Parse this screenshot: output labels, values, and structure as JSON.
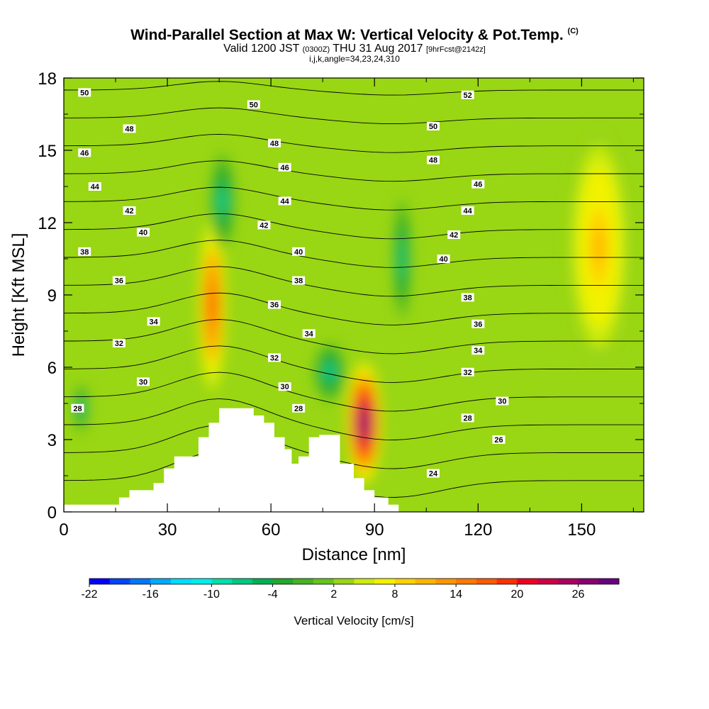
{
  "header": {
    "title": "Wind-Parallel Section at Max W: Vertical Velocity & Pot.Temp.",
    "copyright_mark": "(C)",
    "valid_prefix": "Valid 1200 JST",
    "valid_zulu": "(0300Z)",
    "valid_date": "THU 31 Aug 2017",
    "forecast_info": "[9hrFcst@2142z]",
    "indices": "i,j,k,angle=34,23,24,310"
  },
  "colorbar": {
    "title": "Vertical Velocity [cm/s]",
    "tick_labels": [
      "-22",
      "-16",
      "-10",
      "-4",
      "2",
      "8",
      "14",
      "20",
      "26"
    ],
    "colors": [
      "#0000ff",
      "#0044ff",
      "#0077ff",
      "#00aaff",
      "#00ddff",
      "#00eeee",
      "#00e0aa",
      "#00c880",
      "#00b050",
      "#22a82a",
      "#44b422",
      "#66c41c",
      "#99d614",
      "#ccec0c",
      "#f2f200",
      "#ffd200",
      "#ffb400",
      "#ff9600",
      "#ff7800",
      "#ff5a00",
      "#ff3000",
      "#ee0022",
      "#cc0044",
      "#aa0060",
      "#880070",
      "#6a0080"
    ]
  },
  "chart_data": {
    "type": "heatmap",
    "title": "Wind-Parallel Section at Max W: Vertical Velocity & Pot.Temp.",
    "xlabel": "Distance [nm]",
    "ylabel": "Height [Kft MSL]",
    "xlim": [
      0,
      168
    ],
    "ylim": [
      0,
      18
    ],
    "xticks": [
      0,
      30,
      60,
      90,
      120,
      150
    ],
    "yticks": [
      0,
      3,
      6,
      9,
      12,
      15,
      18
    ],
    "fill_variable": "Vertical Velocity [cm/s]",
    "fill_range": [
      -22,
      30
    ],
    "contour_variable": "Potential temperature",
    "contour_levels": [
      24,
      26,
      28,
      30,
      32,
      34,
      36,
      38,
      40,
      42,
      44,
      46,
      48,
      50,
      52
    ],
    "contour_labels": [
      {
        "text": "50",
        "x": 6,
        "y": 17.4
      },
      {
        "text": "50",
        "x": 55,
        "y": 16.9
      },
      {
        "text": "52",
        "x": 117,
        "y": 17.3
      },
      {
        "text": "48",
        "x": 19,
        "y": 15.9
      },
      {
        "text": "48",
        "x": 61,
        "y": 15.3
      },
      {
        "text": "50",
        "x": 107,
        "y": 16.0
      },
      {
        "text": "46",
        "x": 6,
        "y": 14.9
      },
      {
        "text": "46",
        "x": 64,
        "y": 14.3
      },
      {
        "text": "48",
        "x": 107,
        "y": 14.6
      },
      {
        "text": "44",
        "x": 9,
        "y": 13.5
      },
      {
        "text": "44",
        "x": 64,
        "y": 12.9
      },
      {
        "text": "46",
        "x": 120,
        "y": 13.6
      },
      {
        "text": "42",
        "x": 19,
        "y": 12.5
      },
      {
        "text": "42",
        "x": 58,
        "y": 11.9
      },
      {
        "text": "44",
        "x": 117,
        "y": 12.5
      },
      {
        "text": "40",
        "x": 23,
        "y": 11.6
      },
      {
        "text": "40",
        "x": 68,
        "y": 10.8
      },
      {
        "text": "42",
        "x": 113,
        "y": 11.5
      },
      {
        "text": "38",
        "x": 6,
        "y": 10.8
      },
      {
        "text": "38",
        "x": 68,
        "y": 9.6
      },
      {
        "text": "40",
        "x": 110,
        "y": 10.5
      },
      {
        "text": "36",
        "x": 16,
        "y": 9.6
      },
      {
        "text": "36",
        "x": 61,
        "y": 8.6
      },
      {
        "text": "38",
        "x": 117,
        "y": 8.9
      },
      {
        "text": "34",
        "x": 26,
        "y": 7.9
      },
      {
        "text": "34",
        "x": 71,
        "y": 7.4
      },
      {
        "text": "36",
        "x": 120,
        "y": 7.8
      },
      {
        "text": "32",
        "x": 16,
        "y": 7.0
      },
      {
        "text": "32",
        "x": 61,
        "y": 6.4
      },
      {
        "text": "34",
        "x": 120,
        "y": 6.7
      },
      {
        "text": "30",
        "x": 23,
        "y": 5.4
      },
      {
        "text": "30",
        "x": 64,
        "y": 5.2
      },
      {
        "text": "32",
        "x": 117,
        "y": 5.8
      },
      {
        "text": "28",
        "x": 4,
        "y": 4.3
      },
      {
        "text": "28",
        "x": 68,
        "y": 4.3
      },
      {
        "text": "30",
        "x": 127,
        "y": 4.6
      },
      {
        "text": "28",
        "x": 117,
        "y": 3.9
      },
      {
        "text": "26",
        "x": 126,
        "y": 3.0
      },
      {
        "text": "24",
        "x": 107,
        "y": 1.6
      }
    ],
    "terrain_top_kft": [
      [
        0,
        0.3
      ],
      [
        16,
        0.3
      ],
      [
        16,
        0.6
      ],
      [
        19,
        0.6
      ],
      [
        19,
        0.9
      ],
      [
        26,
        0.9
      ],
      [
        26,
        1.2
      ],
      [
        29,
        1.2
      ],
      [
        29,
        1.8
      ],
      [
        32,
        1.8
      ],
      [
        32,
        2.3
      ],
      [
        39,
        2.3
      ],
      [
        39,
        3.1
      ],
      [
        42,
        3.1
      ],
      [
        42,
        3.7
      ],
      [
        45,
        3.7
      ],
      [
        45,
        4.3
      ],
      [
        55,
        4.3
      ],
      [
        55,
        4.0
      ],
      [
        58,
        4.0
      ],
      [
        58,
        3.7
      ],
      [
        61,
        3.7
      ],
      [
        61,
        3.1
      ],
      [
        64,
        3.1
      ],
      [
        64,
        2.6
      ],
      [
        66,
        2.6
      ],
      [
        66,
        2.0
      ],
      [
        68,
        2.0
      ],
      [
        68,
        2.3
      ],
      [
        71,
        2.3
      ],
      [
        71,
        3.1
      ],
      [
        74,
        3.1
      ],
      [
        74,
        3.2
      ],
      [
        77,
        3.2
      ],
      [
        80,
        3.2
      ],
      [
        80,
        2.0
      ],
      [
        84,
        2.0
      ],
      [
        84,
        1.4
      ],
      [
        87,
        1.4
      ],
      [
        87,
        0.9
      ],
      [
        90,
        0.9
      ],
      [
        90,
        0.6
      ],
      [
        94,
        0.6
      ],
      [
        94,
        0.3
      ],
      [
        97,
        0.3
      ],
      [
        97,
        0.0
      ]
    ],
    "w_features": [
      {
        "name": "updraft max",
        "x": 87,
        "y": 3.7,
        "w": 30,
        "rx": 5,
        "ry": 2.5
      },
      {
        "name": "updraft band",
        "x": 43,
        "y": 8.6,
        "w": 18,
        "rx": 4,
        "ry": 3.6
      },
      {
        "name": "downdraft",
        "x": 77,
        "y": 5.8,
        "w": -10,
        "rx": 4.5,
        "ry": 1.2
      },
      {
        "name": "downdraft upper",
        "x": 46,
        "y": 12.9,
        "w": -9,
        "rx": 3.5,
        "ry": 2.0
      },
      {
        "name": "downdraft right",
        "x": 98,
        "y": 10.5,
        "w": -8,
        "rx": 2.5,
        "ry": 2.5
      },
      {
        "name": "left downdraft",
        "x": 5,
        "y": 4.3,
        "w": -9,
        "rx": 2,
        "ry": 1.0
      },
      {
        "name": "right upper updraft",
        "x": 155,
        "y": 11.0,
        "w": 10,
        "rx": 9,
        "ry": 5
      }
    ]
  }
}
